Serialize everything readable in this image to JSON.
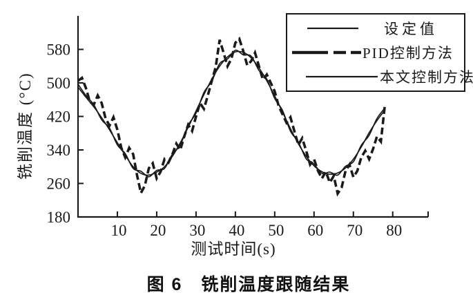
{
  "figure": {
    "caption": "图 6　铣削温度跟随结果"
  },
  "chart_data": {
    "type": "line",
    "title": "",
    "xlabel": "测试时间(s)",
    "ylabel": "铣削温度 (°C)",
    "xlim": [
      0,
      89
    ],
    "ylim": [
      180,
      660
    ],
    "x_ticks": [
      10,
      20,
      30,
      40,
      50,
      60,
      70,
      80
    ],
    "y_ticks": [
      180,
      260,
      340,
      420,
      500,
      580
    ],
    "grid": false,
    "legend_position": "top-right",
    "ink_color": "#1a1a1a",
    "background_color": "#ffffff",
    "series": [
      {
        "id": "setpoint",
        "name": "设定值",
        "style": "thin-solid",
        "x": [
          0,
          2,
          4,
          6,
          8,
          10,
          12,
          14,
          16,
          18,
          20,
          22,
          24,
          26,
          28,
          30,
          32,
          34,
          36,
          38,
          40,
          42,
          44,
          46,
          48,
          50,
          52,
          54,
          56,
          58,
          60,
          62,
          64,
          66,
          68,
          70,
          72,
          74,
          76,
          78
        ],
        "values": [
          490,
          466,
          443,
          417,
          388,
          357,
          327,
          300,
          284,
          280,
          287,
          300,
          325,
          357,
          394,
          433,
          472,
          509,
          540,
          562,
          574,
          573,
          560,
          536,
          505,
          469,
          430,
          391,
          355,
          325,
          302,
          288,
          282,
          285,
          297,
          318,
          347,
          381,
          410,
          435
        ]
      },
      {
        "id": "pid",
        "name": "PID控制方法",
        "style": "thick-dashed",
        "x": [
          0,
          1,
          2,
          3,
          4,
          5,
          6,
          7,
          8,
          9,
          10,
          11,
          12,
          13,
          14,
          15,
          16,
          17,
          18,
          19,
          20,
          21,
          22,
          23,
          24,
          25,
          26,
          27,
          28,
          29,
          30,
          31,
          32,
          33,
          34,
          35,
          36,
          37,
          38,
          39,
          40,
          41,
          42,
          43,
          44,
          45,
          46,
          47,
          48,
          49,
          50,
          51,
          52,
          53,
          54,
          55,
          56,
          57,
          58,
          59,
          60,
          61,
          62,
          63,
          64,
          65,
          66,
          67,
          68,
          69,
          70,
          71,
          72,
          73,
          74,
          75,
          76,
          77,
          78
        ],
        "values": [
          505,
          512,
          488,
          455,
          448,
          470,
          452,
          415,
          398,
          418,
          388,
          345,
          322,
          345,
          330,
          280,
          237,
          255,
          296,
          308,
          272,
          288,
          318,
          310,
          330,
          355,
          340,
          372,
          400,
          385,
          420,
          452,
          438,
          470,
          505,
          538,
          603,
          572,
          540,
          558,
          596,
          605,
          576,
          542,
          552,
          572,
          540,
          508,
          520,
          500,
          480,
          445,
          425,
          405,
          418,
          385,
          352,
          368,
          338,
          305,
          318,
          290,
          272,
          288,
          262,
          278,
          236,
          250,
          290,
          305,
          275,
          290,
          322,
          338,
          318,
          342,
          372,
          360,
          446
        ]
      },
      {
        "id": "proposed",
        "name": "本文控制方法",
        "style": "thin-solid",
        "x": [
          0,
          2,
          4,
          6,
          8,
          10,
          12,
          14,
          16,
          18,
          20,
          22,
          24,
          26,
          28,
          30,
          32,
          34,
          36,
          38,
          40,
          42,
          44,
          46,
          48,
          50,
          52,
          54,
          56,
          58,
          60,
          62,
          64,
          66,
          68,
          70,
          72,
          74,
          76,
          78
        ],
        "values": [
          497,
          470,
          448,
          412,
          392,
          352,
          331,
          296,
          289,
          276,
          291,
          296,
          330,
          352,
          399,
          428,
          477,
          504,
          546,
          557,
          578,
          567,
          564,
          530,
          509,
          463,
          434,
          385,
          359,
          319,
          306,
          284,
          287,
          280,
          301,
          312,
          351,
          375,
          415,
          440
        ]
      }
    ]
  }
}
